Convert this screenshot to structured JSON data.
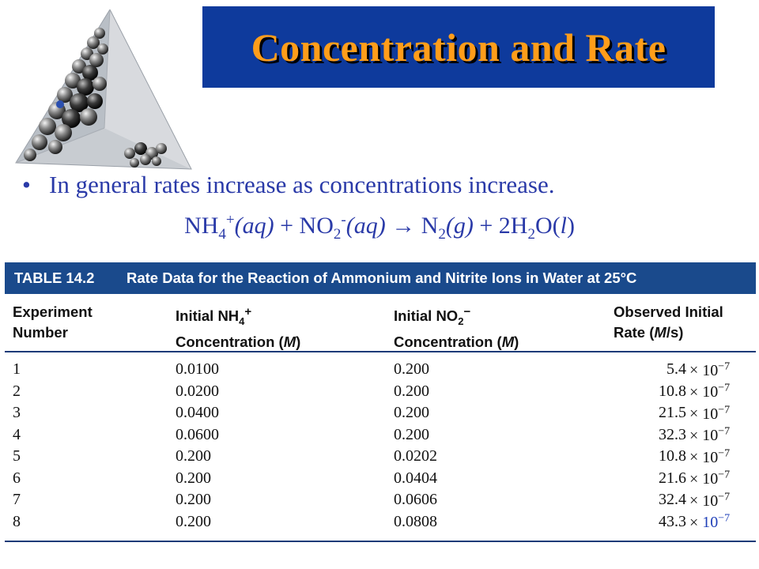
{
  "title": "Concentration and Rate",
  "bullet": {
    "marker": "•",
    "text": "In general rates increase as concentrations increase."
  },
  "equation": {
    "r1": "NH",
    "r1_sub": "4",
    "r1_sup": "+",
    "r1_phase": "(aq)",
    "plus": " + ",
    "r2": "NO",
    "r2_sub": "2",
    "r2_sup": "-",
    "r2_phase": "(aq)",
    "arrow": " → ",
    "p1": "N",
    "p1_sub": "2",
    "p1_phase": "(g)",
    "p2": "2H",
    "p2_sub": "2",
    "p2_tail": "O(",
    "p2_l": "l",
    "p2_close": ")"
  },
  "table": {
    "label": "TABLE 14.2",
    "caption": "Rate Data for the Reaction of Ammonium and Nitrite Ions in Water at 25°C",
    "columns": {
      "c1_l1": "Experiment",
      "c1_l2": "Number",
      "c2_l1a": "Initial NH",
      "c2_sub": "4",
      "c2_sup": "+",
      "c2_l2a": "Concentration (",
      "c2_unit": "M",
      "c2_l2b": ")",
      "c3_l1a": "Initial NO",
      "c3_sub": "2",
      "c3_sup": "−",
      "c3_l2a": "Concentration (",
      "c3_unit": "M",
      "c3_l2b": ")",
      "c4_l1": "Observed Initial",
      "c4_l2a": "Rate (",
      "c4_unit": "M",
      "c4_l2b": "/s)"
    },
    "times": "×",
    "power_base": "10",
    "power_exp": "−7",
    "rows": [
      {
        "n": "1",
        "nh4": "0.0100",
        "no2": "0.200",
        "rate": "5.4"
      },
      {
        "n": "2",
        "nh4": "0.0200",
        "no2": "0.200",
        "rate": "10.8"
      },
      {
        "n": "3",
        "nh4": "0.0400",
        "no2": "0.200",
        "rate": "21.5"
      },
      {
        "n": "4",
        "nh4": "0.0600",
        "no2": "0.200",
        "rate": "32.3"
      },
      {
        "n": "5",
        "nh4": "0.200",
        "no2": "0.0202",
        "rate": "10.8"
      },
      {
        "n": "6",
        "nh4": "0.200",
        "no2": "0.0404",
        "rate": "21.6"
      },
      {
        "n": "7",
        "nh4": "0.200",
        "no2": "0.0606",
        "rate": "32.4"
      },
      {
        "n": "8",
        "nh4": "0.200",
        "no2": "0.0808",
        "rate": "43.3"
      }
    ]
  },
  "colors": {
    "banner": "#0e3a9c",
    "title": "#ff9d1a",
    "body_text": "#2a3aa8",
    "table_header": "#1a4a8c"
  },
  "icons": {
    "logo": "molecular-tetrahedron-icon"
  }
}
